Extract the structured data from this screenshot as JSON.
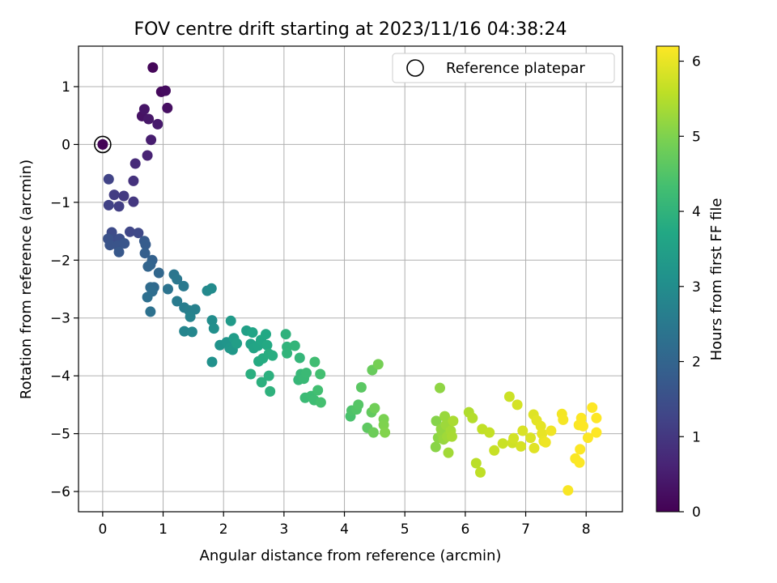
{
  "chart_data": {
    "type": "scatter",
    "title": "FOV centre drift starting at 2023/11/16 04:38:24",
    "xlabel": "Angular distance from reference (arcmin)",
    "ylabel": "Rotation from reference (arcmin)",
    "colorbar_label": "Hours from first FF file",
    "xlim": [
      -0.4,
      8.6
    ],
    "ylim": [
      -6.35,
      1.7
    ],
    "x_ticks": [
      0,
      1,
      2,
      3,
      4,
      5,
      6,
      7,
      8
    ],
    "y_ticks": [
      -6,
      -5,
      -4,
      -3,
      -2,
      -1,
      0,
      1
    ],
    "clim": [
      0,
      6.2
    ],
    "c_ticks": [
      0,
      1,
      2,
      3,
      4,
      5,
      6
    ],
    "colormap": "viridis",
    "grid": true,
    "legend_position": "top-right",
    "reference": {
      "name": "Reference platepar",
      "x": 0,
      "y": 0
    },
    "points": [
      [
        0.0,
        0.0,
        0.05
      ],
      [
        0.83,
        1.33,
        0.1
      ],
      [
        0.97,
        0.91,
        0.15
      ],
      [
        1.04,
        0.93,
        0.2
      ],
      [
        1.07,
        0.63,
        0.25
      ],
      [
        0.65,
        0.49,
        0.3
      ],
      [
        0.69,
        0.61,
        0.35
      ],
      [
        0.76,
        0.44,
        0.4
      ],
      [
        0.91,
        0.35,
        0.45
      ],
      [
        0.8,
        0.08,
        0.5
      ],
      [
        0.74,
        -0.19,
        0.6
      ],
      [
        0.54,
        -0.33,
        0.75
      ],
      [
        0.51,
        -0.63,
        0.9
      ],
      [
        0.51,
        -0.99,
        1.0
      ],
      [
        0.35,
        -0.89,
        1.05
      ],
      [
        0.19,
        -0.87,
        1.1
      ],
      [
        0.27,
        -1.07,
        1.15
      ],
      [
        0.1,
        -1.05,
        1.2
      ],
      [
        0.1,
        -0.6,
        1.25
      ],
      [
        0.45,
        -1.51,
        1.3
      ],
      [
        0.59,
        -1.53,
        1.35
      ],
      [
        0.15,
        -1.52,
        1.4
      ],
      [
        0.18,
        -1.63,
        1.45
      ],
      [
        0.28,
        -1.63,
        1.5
      ],
      [
        0.09,
        -1.63,
        1.55
      ],
      [
        0.12,
        -1.74,
        1.6
      ],
      [
        0.25,
        -1.75,
        1.6
      ],
      [
        0.36,
        -1.71,
        1.65
      ],
      [
        0.27,
        -1.86,
        1.7
      ],
      [
        0.69,
        -1.67,
        1.75
      ],
      [
        0.71,
        -1.73,
        1.8
      ],
      [
        0.7,
        -1.88,
        1.85
      ],
      [
        0.82,
        -2.0,
        1.9
      ],
      [
        0.79,
        -2.08,
        1.95
      ],
      [
        0.75,
        -2.11,
        2.0
      ],
      [
        0.93,
        -2.22,
        2.05
      ],
      [
        0.85,
        -2.47,
        2.1
      ],
      [
        0.79,
        -2.47,
        2.15
      ],
      [
        0.82,
        -2.54,
        2.2
      ],
      [
        0.74,
        -2.64,
        2.25
      ],
      [
        0.79,
        -2.89,
        2.3
      ],
      [
        1.08,
        -2.5,
        2.35
      ],
      [
        1.18,
        -2.25,
        2.4
      ],
      [
        1.23,
        -2.33,
        2.45
      ],
      [
        1.34,
        -2.45,
        2.5
      ],
      [
        1.23,
        -2.71,
        2.55
      ],
      [
        1.35,
        -2.82,
        2.6
      ],
      [
        1.43,
        -2.87,
        2.65
      ],
      [
        1.53,
        -2.85,
        2.7
      ],
      [
        1.45,
        -2.98,
        2.75
      ],
      [
        1.35,
        -3.23,
        2.8
      ],
      [
        1.48,
        -3.24,
        2.85
      ],
      [
        1.73,
        -2.53,
        2.9
      ],
      [
        1.8,
        -2.49,
        2.95
      ],
      [
        1.81,
        -3.04,
        3.0
      ],
      [
        1.84,
        -3.18,
        3.05
      ],
      [
        1.81,
        -3.76,
        3.1
      ],
      [
        1.94,
        -3.47,
        3.15
      ],
      [
        2.05,
        -3.42,
        3.2
      ],
      [
        2.1,
        -3.52,
        3.25
      ],
      [
        2.15,
        -3.55,
        3.3
      ],
      [
        2.12,
        -3.05,
        3.35
      ],
      [
        2.17,
        -3.35,
        3.4
      ],
      [
        2.22,
        -3.44,
        3.45
      ],
      [
        2.38,
        -3.22,
        3.5
      ],
      [
        2.45,
        -3.45,
        3.55
      ],
      [
        2.48,
        -3.25,
        3.6
      ],
      [
        2.5,
        -3.52,
        3.62
      ],
      [
        2.57,
        -3.48,
        3.65
      ],
      [
        2.62,
        -3.38,
        3.7
      ],
      [
        2.7,
        -3.28,
        3.72
      ],
      [
        2.72,
        -3.47,
        3.75
      ],
      [
        2.58,
        -3.75,
        3.78
      ],
      [
        2.65,
        -3.7,
        3.8
      ],
      [
        2.75,
        -3.62,
        3.83
      ],
      [
        2.81,
        -3.65,
        3.85
      ],
      [
        2.45,
        -3.97,
        3.88
      ],
      [
        2.63,
        -4.11,
        3.9
      ],
      [
        2.75,
        -4.0,
        3.92
      ],
      [
        2.77,
        -4.27,
        3.95
      ],
      [
        3.03,
        -3.28,
        3.97
      ],
      [
        3.05,
        -3.5,
        4.0
      ],
      [
        3.05,
        -3.61,
        4.02
      ],
      [
        3.18,
        -3.48,
        4.05
      ],
      [
        3.26,
        -3.69,
        4.07
      ],
      [
        3.24,
        -4.07,
        4.1
      ],
      [
        3.28,
        -3.97,
        4.12
      ],
      [
        3.33,
        -4.05,
        4.15
      ],
      [
        3.37,
        -3.95,
        4.17
      ],
      [
        3.35,
        -4.38,
        4.2
      ],
      [
        3.45,
        -4.35,
        4.22
      ],
      [
        3.5,
        -4.42,
        4.25
      ],
      [
        3.51,
        -3.76,
        4.27
      ],
      [
        3.56,
        -4.25,
        4.3
      ],
      [
        3.6,
        -3.97,
        4.32
      ],
      [
        3.61,
        -4.46,
        4.35
      ],
      [
        4.1,
        -4.7,
        4.4
      ],
      [
        4.12,
        -4.6,
        4.45
      ],
      [
        4.2,
        -4.58,
        4.5
      ],
      [
        4.23,
        -4.5,
        4.55
      ],
      [
        4.28,
        -4.2,
        4.6
      ],
      [
        4.38,
        -4.9,
        4.65
      ],
      [
        4.45,
        -4.63,
        4.7
      ],
      [
        4.46,
        -3.9,
        4.75
      ],
      [
        4.48,
        -4.98,
        4.8
      ],
      [
        4.5,
        -4.56,
        4.85
      ],
      [
        4.56,
        -3.8,
        4.9
      ],
      [
        4.65,
        -4.75,
        4.95
      ],
      [
        4.65,
        -4.85,
        5.0
      ],
      [
        4.67,
        -4.98,
        5.03
      ],
      [
        5.52,
        -4.78,
        5.06
      ],
      [
        5.51,
        -5.23,
        5.1
      ],
      [
        5.55,
        -5.07,
        5.12
      ],
      [
        5.58,
        -4.21,
        5.15
      ],
      [
        5.6,
        -4.92,
        5.18
      ],
      [
        5.62,
        -5.0,
        5.2
      ],
      [
        5.64,
        -5.1,
        5.23
      ],
      [
        5.66,
        -4.7,
        5.25
      ],
      [
        5.68,
        -4.85,
        5.28
      ],
      [
        5.7,
        -5.05,
        5.3
      ],
      [
        5.72,
        -5.33,
        5.33
      ],
      [
        5.76,
        -4.95,
        5.35
      ],
      [
        5.78,
        -5.05,
        5.38
      ],
      [
        5.8,
        -4.78,
        5.4
      ],
      [
        6.06,
        -4.63,
        5.45
      ],
      [
        6.12,
        -4.73,
        5.5
      ],
      [
        6.18,
        -5.51,
        5.55
      ],
      [
        6.25,
        -5.67,
        5.6
      ],
      [
        6.28,
        -4.92,
        5.62
      ],
      [
        6.4,
        -4.98,
        5.65
      ],
      [
        6.48,
        -5.29,
        5.68
      ],
      [
        6.62,
        -5.17,
        5.7
      ],
      [
        6.73,
        -4.36,
        5.72
      ],
      [
        6.78,
        -5.16,
        5.75
      ],
      [
        6.8,
        -5.08,
        5.78
      ],
      [
        6.86,
        -4.5,
        5.8
      ],
      [
        6.92,
        -5.22,
        5.82
      ],
      [
        6.95,
        -4.95,
        5.85
      ],
      [
        7.08,
        -5.07,
        5.87
      ],
      [
        7.13,
        -4.67,
        5.9
      ],
      [
        7.14,
        -5.25,
        5.92
      ],
      [
        7.18,
        -4.77,
        5.95
      ],
      [
        7.25,
        -4.87,
        5.97
      ],
      [
        7.27,
        -5.0,
        6.0
      ],
      [
        7.3,
        -5.13,
        6.02
      ],
      [
        7.33,
        -5.15,
        6.05
      ],
      [
        7.42,
        -4.95,
        6.07
      ],
      [
        7.6,
        -4.66,
        6.1
      ],
      [
        7.62,
        -4.76,
        6.12
      ],
      [
        7.7,
        -5.98,
        6.15
      ],
      [
        7.82,
        -5.43,
        6.17
      ],
      [
        7.88,
        -4.85,
        6.17
      ],
      [
        7.9,
        -5.27,
        6.18
      ],
      [
        7.89,
        -5.5,
        6.18
      ],
      [
        7.92,
        -4.73,
        6.19
      ],
      [
        7.95,
        -4.87,
        6.19
      ],
      [
        8.03,
        -5.07,
        6.19
      ],
      [
        8.1,
        -4.55,
        6.2
      ],
      [
        8.17,
        -4.73,
        6.2
      ],
      [
        8.17,
        -4.98,
        6.2
      ]
    ]
  }
}
